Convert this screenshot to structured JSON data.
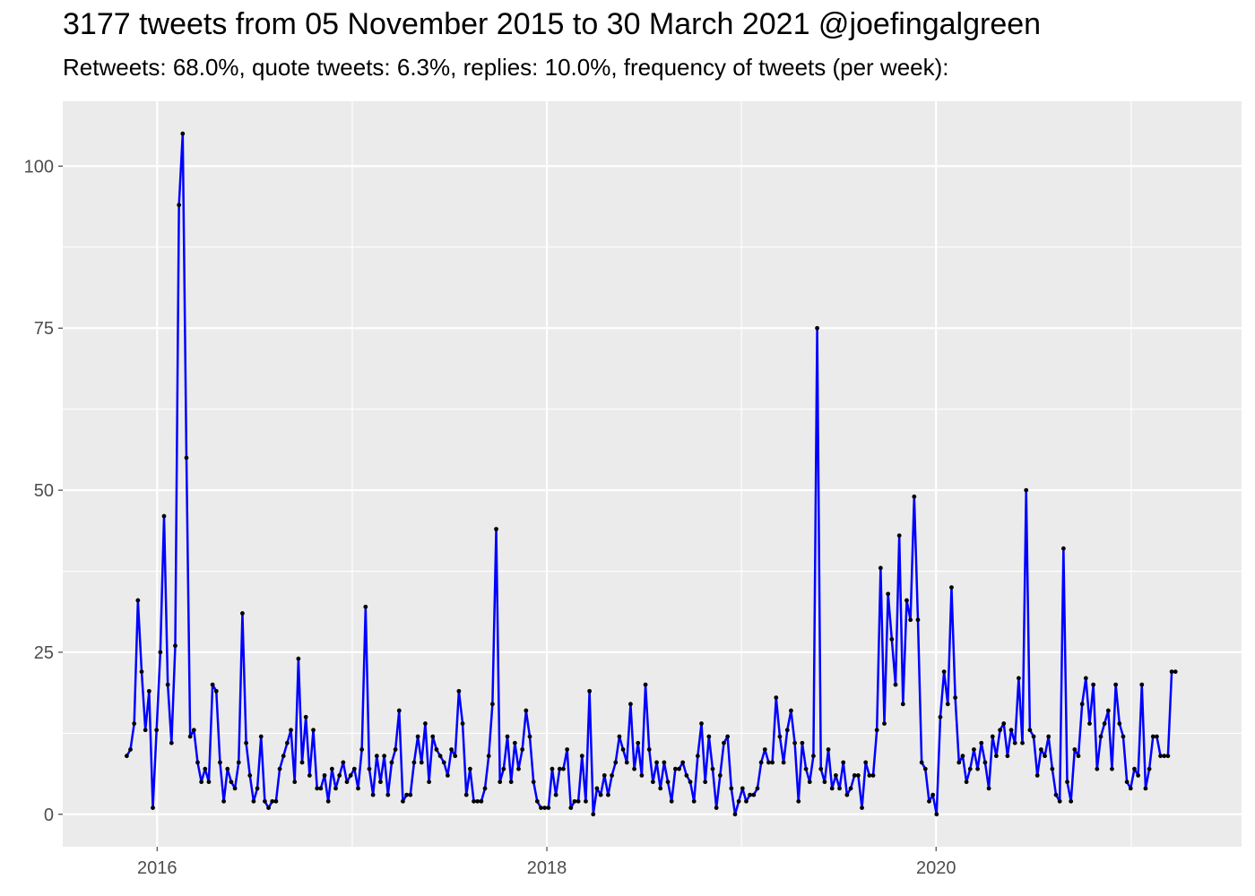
{
  "chart_data": {
    "type": "line",
    "title": "3177 tweets from 05 November 2015 to 30 March 2021 @joefingalgreen",
    "subtitle": "Retweets: 68.0%, quote tweets: 6.3%, replies: 10.0%, frequency of tweets (per week):",
    "xlabel": "",
    "ylabel": "",
    "xlim": [
      "2015-07-08",
      "2021-07-27"
    ],
    "ylim": [
      -5,
      110
    ],
    "x_ticks": [
      "2016-01-01",
      "2018-01-01",
      "2020-01-01"
    ],
    "x_tick_labels": [
      "2016",
      "2018",
      "2020"
    ],
    "x_minor_ticks": [
      "2017-01-01",
      "2019-01-01",
      "2021-01-01"
    ],
    "y_ticks": [
      0,
      25,
      50,
      75,
      100
    ],
    "y_tick_labels": [
      "0",
      "25",
      "50",
      "75",
      "100"
    ],
    "grid": true,
    "legend": "none",
    "colors": {
      "panel_bg": "#ebebeb",
      "grid": "#ffffff",
      "line": "#0000ff",
      "points": "#000000",
      "tick_text": "#4d4d4d"
    },
    "series": [
      {
        "x_start": "2015-11-05",
        "x_step_days": 7,
        "values": [
          9,
          10,
          14,
          33,
          22,
          13,
          19,
          1,
          13,
          25,
          46,
          20,
          11,
          26,
          94,
          105,
          55,
          12,
          13,
          8,
          5,
          7,
          5,
          20,
          19,
          8,
          2,
          7,
          5,
          4,
          8,
          31,
          11,
          6,
          2,
          4,
          12,
          2,
          1,
          2,
          2,
          7,
          9,
          11,
          13,
          5,
          24,
          8,
          15,
          6,
          13,
          4,
          4,
          6,
          2,
          7,
          4,
          6,
          8,
          5,
          6,
          7,
          4,
          10,
          32,
          7,
          3,
          9,
          5,
          9,
          3,
          8,
          10,
          16,
          2,
          3,
          3,
          8,
          12,
          8,
          14,
          5,
          12,
          10,
          9,
          8,
          6,
          10,
          9,
          19,
          14,
          3,
          7,
          2,
          2,
          2,
          4,
          9,
          17,
          44,
          5,
          7,
          12,
          5,
          11,
          7,
          10,
          16,
          12,
          5,
          2,
          1,
          1,
          1,
          7,
          3,
          7,
          7,
          10,
          1,
          2,
          2,
          9,
          2,
          19,
          0,
          4,
          3,
          6,
          3,
          6,
          8,
          12,
          10,
          8,
          17,
          7,
          11,
          6,
          20,
          10,
          5,
          8,
          4,
          8,
          5,
          2,
          7,
          7,
          8,
          6,
          5,
          2,
          9,
          14,
          5,
          12,
          7,
          1,
          6,
          11,
          12,
          4,
          0,
          2,
          4,
          2,
          3,
          3,
          4,
          8,
          10,
          8,
          8,
          18,
          12,
          8,
          13,
          16,
          11,
          2,
          11,
          7,
          5,
          9,
          75,
          7,
          5,
          10,
          4,
          6,
          4,
          8,
          3,
          4,
          6,
          6,
          1,
          8,
          6,
          6,
          13,
          38,
          14,
          34,
          27,
          20,
          43,
          17,
          33,
          30,
          49,
          30,
          8,
          7,
          2,
          3,
          0,
          15,
          22,
          17,
          35,
          18,
          8,
          9,
          5,
          7,
          10,
          7,
          11,
          8,
          4,
          12,
          9,
          13,
          14,
          9,
          13,
          11,
          21,
          11,
          50,
          13,
          12,
          6,
          10,
          9,
          12,
          7,
          3,
          2,
          41,
          5,
          2,
          10,
          9,
          17,
          21,
          14,
          20,
          7,
          12,
          14,
          16,
          7,
          20,
          14,
          12,
          5,
          4,
          7,
          6,
          20,
          4,
          7,
          12,
          12,
          9,
          9,
          9,
          22,
          22
        ]
      }
    ]
  }
}
